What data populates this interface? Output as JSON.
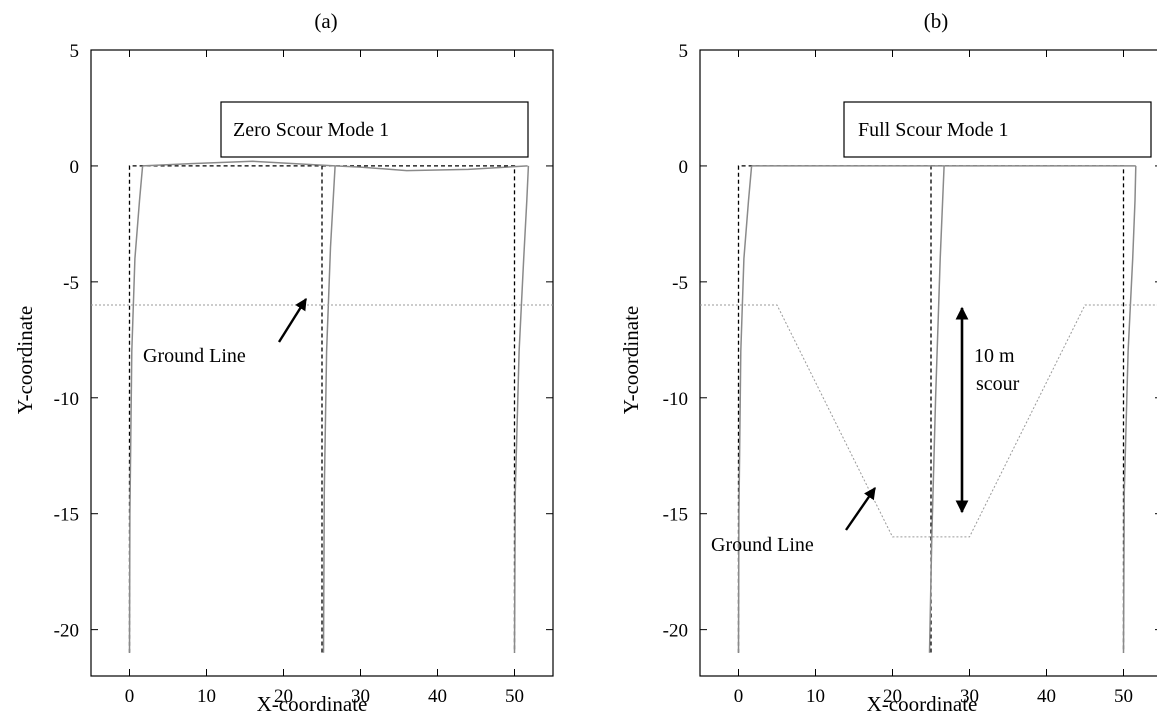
{
  "chart_data": [
    {
      "type": "line",
      "title": "(a)",
      "xlabel": "X-coordinate",
      "ylabel": "Y-coordinate",
      "xlim": [
        -5,
        55
      ],
      "ylim": [
        -22,
        5
      ],
      "xticks": [
        0,
        10,
        20,
        30,
        40,
        50
      ],
      "yticks": [
        5,
        0,
        -5,
        -10,
        -15,
        -20
      ],
      "legend": {
        "text": "Zero Scour Mode 1",
        "placement": "top-right"
      },
      "annotations": [
        {
          "text": "Ground Line",
          "arrow_to": [
            24.5,
            -6.1
          ]
        }
      ],
      "series": [
        {
          "style": "dashed-black",
          "segments": [
            [
              [
                0,
                -21
              ],
              [
                0,
                0
              ],
              [
                25,
                0
              ],
              [
                25,
                -21
              ]
            ],
            [
              [
                25,
                0
              ],
              [
                50,
                0
              ],
              [
                50,
                -21
              ]
            ]
          ]
        },
        {
          "style": "solid-gray",
          "segments": [
            [
              [
                0,
                -21
              ],
              [
                0.05,
                -15
              ],
              [
                0.3,
                -8
              ],
              [
                0.7,
                -4
              ],
              [
                1.3,
                -1.5
              ],
              [
                1.7,
                0
              ]
            ],
            [
              [
                1.7,
                0
              ],
              [
                8,
                0.1
              ],
              [
                16,
                0.2
              ],
              [
                24,
                0.05
              ],
              [
                26.7,
                0
              ]
            ],
            [
              [
                25.2,
                -21
              ],
              [
                25.3,
                -14
              ],
              [
                25.6,
                -8
              ],
              [
                26.1,
                -3.5
              ],
              [
                26.7,
                0
              ]
            ],
            [
              [
                26.7,
                0
              ],
              [
                30,
                -0.05
              ],
              [
                36,
                -0.2
              ],
              [
                44,
                -0.15
              ],
              [
                51.7,
                0
              ]
            ],
            [
              [
                50,
                -21
              ],
              [
                50.1,
                -14
              ],
              [
                50.6,
                -8
              ],
              [
                51.2,
                -4
              ],
              [
                51.6,
                -1.5
              ],
              [
                51.8,
                0
              ]
            ]
          ]
        },
        {
          "style": "dotted-gray",
          "name": "ground",
          "segments": [
            [
              [
                -5,
                -6
              ],
              [
                55,
                -6
              ]
            ]
          ]
        }
      ]
    },
    {
      "type": "line",
      "title": "(b)",
      "xlabel": "X-coordinate",
      "ylabel": "Y-coordinate",
      "xlim": [
        -5,
        55
      ],
      "ylim": [
        -22,
        5
      ],
      "xticks": [
        0,
        10,
        20,
        30,
        40,
        50
      ],
      "yticks": [
        5,
        0,
        -5,
        -10,
        -15,
        -20
      ],
      "legend": {
        "text": "Full Scour Mode 1",
        "placement": "top-right"
      },
      "annotations": [
        {
          "text": "Ground Line",
          "arrow_to": [
            18.5,
            -14.6
          ]
        },
        {
          "text": "10 m",
          "double_arrow": [
            [
              28.2,
              -6.3
            ],
            [
              28.2,
              -16.1
            ]
          ]
        },
        {
          "text": "scour"
        }
      ],
      "series": [
        {
          "style": "dashed-black",
          "segments": [
            [
              [
                0,
                -21
              ],
              [
                0,
                0
              ],
              [
                25,
                0
              ],
              [
                25,
                -21
              ]
            ],
            [
              [
                25,
                0
              ],
              [
                50,
                0
              ],
              [
                50,
                -21
              ]
            ]
          ]
        },
        {
          "style": "solid-gray",
          "segments": [
            [
              [
                0,
                -21
              ],
              [
                0.05,
                -15
              ],
              [
                0.3,
                -8
              ],
              [
                0.7,
                -4
              ],
              [
                1.3,
                -1.5
              ],
              [
                1.7,
                0
              ]
            ],
            [
              [
                1.7,
                0
              ],
              [
                26.7,
                0
              ]
            ],
            [
              [
                24.8,
                -21
              ],
              [
                25.1,
                -16
              ],
              [
                25.6,
                -10
              ],
              [
                26.2,
                -4
              ],
              [
                26.7,
                0
              ]
            ],
            [
              [
                26.7,
                0
              ],
              [
                51.6,
                0
              ]
            ],
            [
              [
                50,
                -21
              ],
              [
                50.1,
                -14
              ],
              [
                50.6,
                -8
              ],
              [
                51.2,
                -4
              ],
              [
                51.5,
                -1.5
              ],
              [
                51.6,
                0
              ]
            ]
          ]
        },
        {
          "style": "dotted-gray",
          "name": "ground",
          "segments": [
            [
              [
                -5,
                -6
              ],
              [
                5,
                -6
              ],
              [
                20,
                -16
              ],
              [
                30,
                -16
              ],
              [
                45,
                -6
              ],
              [
                55,
                -6
              ]
            ]
          ]
        }
      ]
    }
  ]
}
